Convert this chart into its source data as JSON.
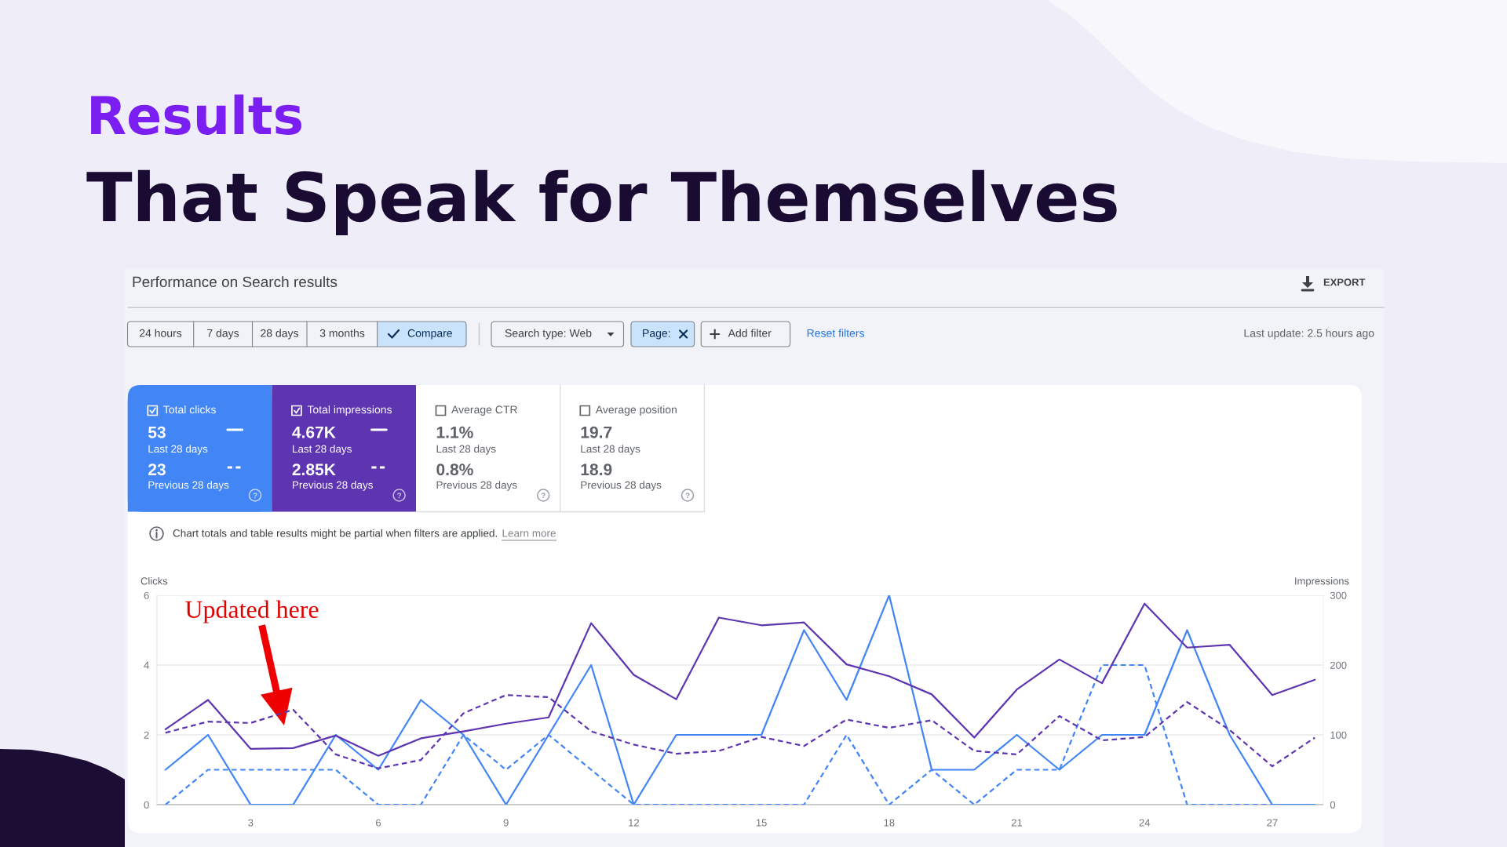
{
  "chart_data": [
    {
      "type": "other",
      "title": "Results",
      "subtitle": "That Speak for Themselves",
      "annotations": [
        "Performance on Search results",
        "EXPORT",
        "24 hours",
        "7 days",
        "28 days",
        "3 months",
        "Compare",
        "Search type: Web",
        "Page:",
        "Add filter",
        "Reset filters",
        "Last update: 2.5 hours ago",
        "Total clicks",
        "53",
        "Last 28 days",
        "23",
        "Previous 28 days",
        "Total impressions",
        "4.67K",
        "Last 28 days",
        "2.85K",
        "Previous 28 days",
        "Average CTR",
        "1.1%",
        "Last 28 days",
        "0.8%",
        "Previous 28 days",
        "Average position",
        "19.7",
        "Last 28 days",
        "18.9",
        "Previous 28 days",
        "Chart totals and table results might be partial when filters are applied.",
        "Learn more"
      ]
    },
    {
      "type": "line",
      "x": [
        1,
        2,
        3,
        4,
        5,
        6,
        7,
        8,
        9,
        10,
        11,
        12,
        13,
        14,
        15,
        16,
        17,
        18,
        19,
        20,
        21,
        22,
        23,
        24,
        25,
        26,
        27,
        28
      ],
      "xlim": [
        0.8,
        28.2
      ],
      "xticks": [
        3,
        6,
        9,
        12,
        15,
        18,
        21,
        24,
        27
      ],
      "ylim": [
        0,
        6
      ],
      "yticks": [
        0,
        2,
        4,
        6
      ],
      "y2lim": [
        0,
        300
      ],
      "y2ticks": [
        0,
        100,
        200,
        300
      ],
      "ylabel": "Clicks",
      "y2label": "Impressions",
      "grid": "y",
      "series": [
        {
          "color": "#4285f4",
          "line_style": "solid",
          "values": [
            1,
            2,
            0,
            0,
            2,
            1,
            3,
            2,
            0,
            2,
            4,
            0,
            2,
            2,
            2,
            5,
            3,
            6,
            1,
            1,
            2,
            1,
            2,
            2,
            5,
            2,
            0,
            0
          ]
        },
        {
          "color": "#4285f4",
          "line_style": "dashed",
          "values": [
            0,
            1,
            1,
            1,
            1,
            0,
            0,
            2,
            1,
            2,
            1,
            0,
            0,
            0,
            0,
            0,
            2,
            0,
            1,
            0,
            1,
            1,
            4,
            4,
            0,
            0,
            0,
            0
          ]
        },
        {
          "color": "#5e35b1",
          "line_style": "solid",
          "axis": "y2",
          "values": [
            108,
            150,
            80,
            81,
            99,
            70,
            95,
            105,
            116,
            125,
            260,
            186,
            151,
            268,
            257,
            261,
            201,
            184,
            158,
            96,
            165,
            208,
            174,
            288,
            225,
            229,
            157,
            179
          ]
        },
        {
          "color": "#5e35b1",
          "line_style": "dashed",
          "axis": "y2",
          "values": [
            103,
            119,
            117,
            136,
            72,
            52,
            64,
            131,
            157,
            154,
            105,
            86,
            73,
            77,
            97,
            84,
            122,
            110,
            121,
            77,
            72,
            127,
            92,
            97,
            147,
            107,
            55,
            96
          ]
        }
      ],
      "annotations": [
        "Updated here"
      ]
    }
  ]
}
